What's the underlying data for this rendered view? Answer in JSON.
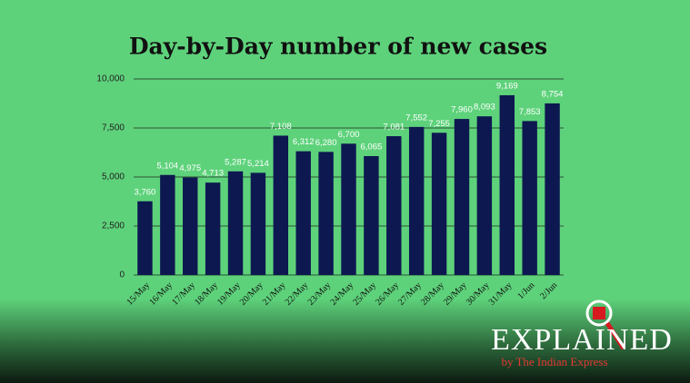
{
  "chart_data": {
    "type": "bar",
    "title": "Day-by-Day number of new cases",
    "categories": [
      "15/May",
      "16/May",
      "17/May",
      "18/May",
      "19/May",
      "20/May",
      "21/May",
      "22/May",
      "23/May",
      "24/May",
      "25/May",
      "26/May",
      "27/May",
      "28/May",
      "29/May",
      "30/May",
      "31/May",
      "1/Jun",
      "2/Jun"
    ],
    "values": [
      3760,
      5104,
      4975,
      4713,
      5287,
      5214,
      7108,
      6312,
      6280,
      6700,
      6065,
      7081,
      7552,
      7255,
      7960,
      8093,
      9169,
      7853,
      8754
    ],
    "value_labels": [
      "3,760",
      "5,104",
      "4,975",
      "4,713",
      "5,287",
      "5,214",
      "7,108",
      "6,312",
      "6,280",
      "6,700",
      "6,065",
      "7,081",
      "7,552",
      "7,255",
      "7,960",
      "8,093",
      "9,169",
      "7,853",
      "8,754"
    ],
    "color": "#0d1850",
    "ylim": [
      0,
      10000
    ],
    "yticks": [
      0,
      {
        "value": 2500,
        "label": "2,500"
      },
      {
        "value": 5000,
        "label": "5,000"
      },
      {
        "value": 7500,
        "label": "7,500"
      },
      {
        "value": 10000,
        "label": "10,000"
      }
    ],
    "grid": true
  },
  "logo": {
    "title": "EXPLAINED",
    "subtitle": "by The Indian Express"
  }
}
